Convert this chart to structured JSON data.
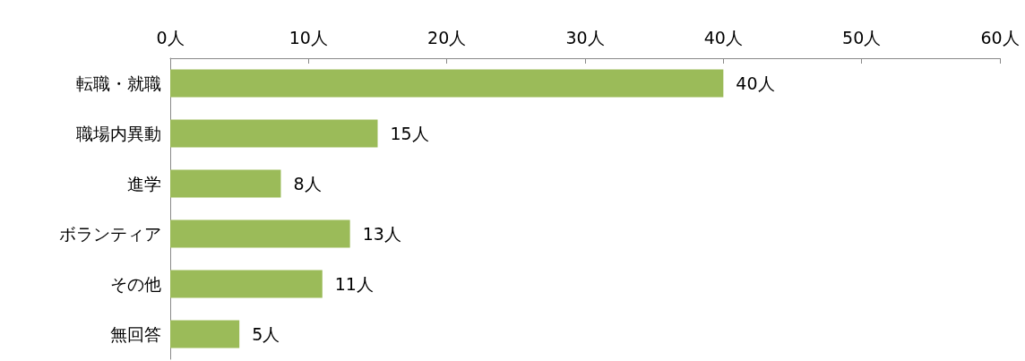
{
  "chart_data": {
    "type": "bar",
    "orientation": "horizontal",
    "categories": [
      "転職・就職",
      "職場内異動",
      "進学",
      "ボランティア",
      "その他",
      "無回答"
    ],
    "values": [
      40,
      15,
      8,
      13,
      11,
      5
    ],
    "value_labels": [
      "40人",
      "15人",
      "8人",
      "13人",
      "11人",
      "5人"
    ],
    "color": "#9bbb59",
    "xlim": [
      0,
      60
    ],
    "xticks": [
      {
        "value": 0,
        "label": "0人"
      },
      {
        "value": 10,
        "label": "10人"
      },
      {
        "value": 20,
        "label": "20人"
      },
      {
        "value": 30,
        "label": "30人"
      },
      {
        "value": 40,
        "label": "40人"
      },
      {
        "value": 50,
        "label": "50人"
      },
      {
        "value": 60,
        "label": "60人"
      }
    ],
    "grid": false
  }
}
